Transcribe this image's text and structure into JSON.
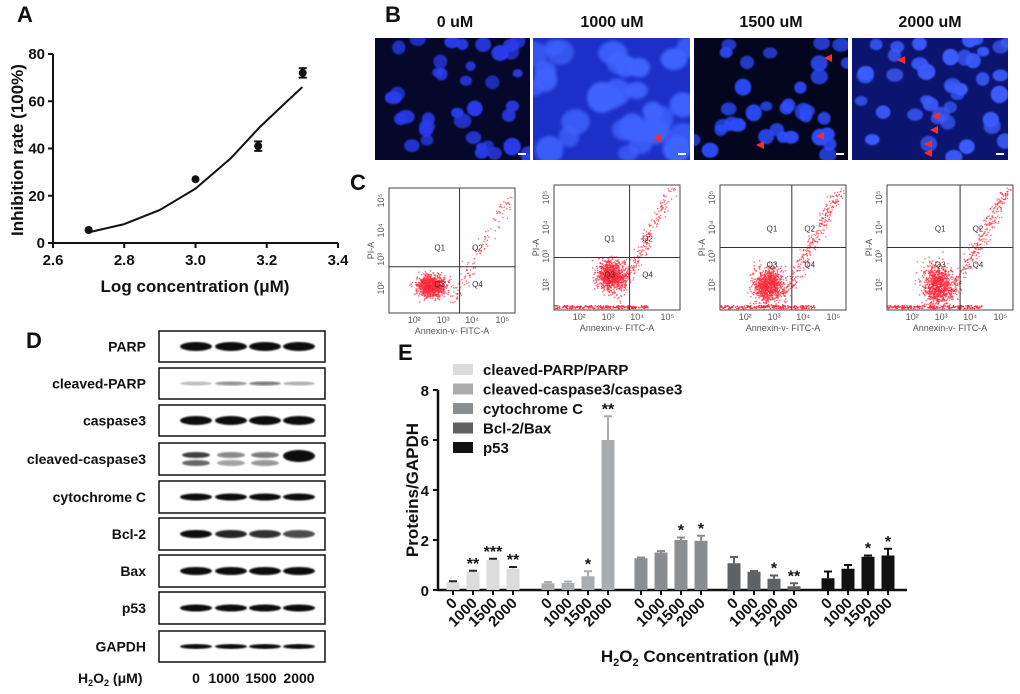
{
  "panels": {
    "a": "A",
    "b": "B",
    "c": "C",
    "d": "D",
    "e": "E"
  },
  "chart_data": [
    {
      "type": "scatter",
      "panel": "A",
      "xlabel": "Log concentration (μM)",
      "ylabel": "Inhibition rate (100%)",
      "xlim": [
        2.6,
        3.4
      ],
      "ylim": [
        0,
        80
      ],
      "xticks": [
        "2.6",
        "2.8",
        "3.0",
        "3.2",
        "3.4"
      ],
      "yticks": [
        "0",
        "20",
        "40",
        "60",
        "80"
      ],
      "points": [
        {
          "x": 2.7,
          "y": 5.5,
          "err": 0.5
        },
        {
          "x": 3.0,
          "y": 27,
          "err": 0.5
        },
        {
          "x": 3.176,
          "y": 41,
          "err": 2
        },
        {
          "x": 3.301,
          "y": 72,
          "err": 2
        }
      ],
      "fit_curve": {
        "x": [
          2.7,
          2.8,
          2.9,
          3.0,
          3.1,
          3.18,
          3.25,
          3.3
        ],
        "y": [
          4.5,
          8,
          14,
          23,
          36,
          49,
          59,
          66
        ]
      }
    },
    {
      "type": "bar",
      "panel": "E",
      "ylabel": "Proteins/GAPDH",
      "xlabel_main": "H",
      "xlabel_sub1": "2",
      "xlabel_mid": "O",
      "xlabel_sub2": "2",
      "xlabel_tail": " Concentration (μM)",
      "ylim": [
        0,
        8
      ],
      "yticks": [
        "0",
        "2",
        "4",
        "6",
        "8"
      ],
      "categories": [
        "0",
        "1000",
        "1500",
        "2000"
      ],
      "series": [
        {
          "name": "cleaved-PARP/PARP",
          "color": "#dcdcdc",
          "values": [
            0.3,
            0.72,
            1.2,
            0.85
          ],
          "errors": [
            0.05,
            0.05,
            0.05,
            0.07
          ],
          "significance": [
            "",
            "**",
            "***",
            "**"
          ]
        },
        {
          "name": "cleaved-caspase3/caspase3",
          "color": "#a9adb0",
          "values": [
            0.27,
            0.28,
            0.55,
            6.0
          ],
          "errors": [
            0.05,
            0.06,
            0.2,
            0.95
          ],
          "significance": [
            "",
            "",
            "*",
            "**"
          ]
        },
        {
          "name": "cytochrome C",
          "color": "#8a8e90",
          "values": [
            1.27,
            1.5,
            2.0,
            1.97
          ],
          "errors": [
            0.03,
            0.06,
            0.1,
            0.2
          ],
          "significance": [
            "",
            "",
            "*",
            "*"
          ]
        },
        {
          "name": "Bcl-2/Bax",
          "color": "#5e6264",
          "values": [
            1.07,
            0.73,
            0.45,
            0.15
          ],
          "errors": [
            0.25,
            0.03,
            0.13,
            0.12
          ],
          "significance": [
            "",
            "",
            "*",
            "**"
          ]
        },
        {
          "name": "p53",
          "color": "#111111",
          "values": [
            0.47,
            0.85,
            1.33,
            1.38
          ],
          "errors": [
            0.27,
            0.15,
            0.05,
            0.27
          ],
          "significance": [
            "",
            "",
            "*",
            "*"
          ]
        }
      ]
    }
  ],
  "microscopy": {
    "headers": [
      "0 uM",
      "1000 uM",
      "1500 uM",
      "2000 uM"
    ]
  },
  "flow": {
    "ylabel": "PI-A",
    "xlabel": "Annexin-v- FITC-A",
    "ticks": [
      "10²",
      "10³",
      "10⁴",
      "10⁵"
    ],
    "quadrants": [
      "Q1",
      "Q2",
      "Q3",
      "Q4"
    ]
  },
  "western": {
    "proteins": [
      "PARP",
      "cleaved-PARP",
      "caspase3",
      "cleaved-caspase3",
      "cytochrome C",
      "Bcl-2",
      "Bax",
      "p53",
      "GAPDH"
    ],
    "treatment_label_main": "H",
    "treatment_sub1": "2",
    "treatment_mid": "O",
    "treatment_sub2": "2",
    "treatment_tail": " (μM)",
    "lanes": [
      "0",
      "1000",
      "1500",
      "2000"
    ]
  }
}
